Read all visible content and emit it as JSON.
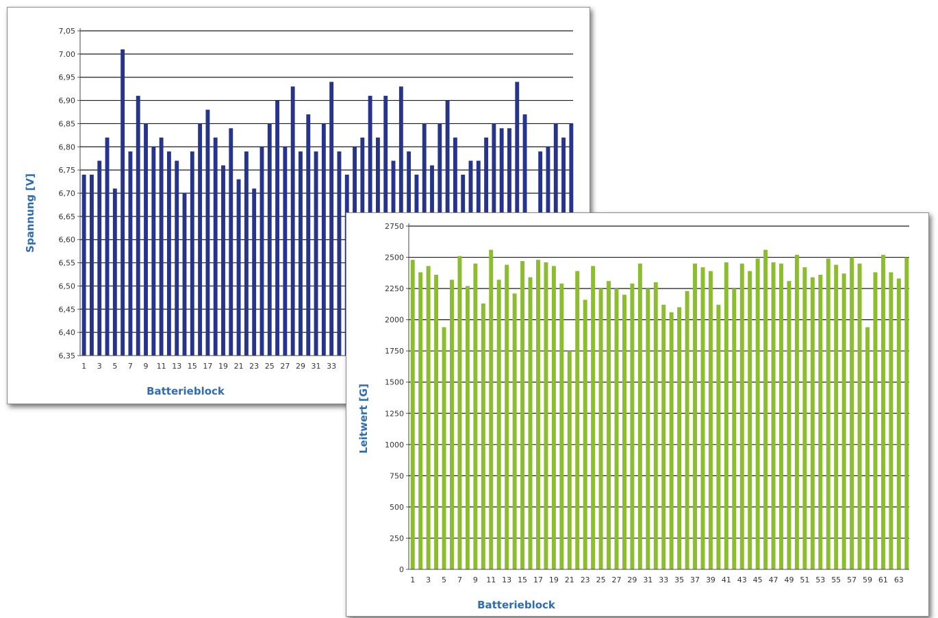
{
  "chart_data": [
    {
      "type": "bar",
      "xlabel": "Batterieblock",
      "ylabel": "Spannung [V]",
      "ylim": [
        6.35,
        7.05
      ],
      "yticks": [
        "6,35",
        "6,40",
        "6,45",
        "6,50",
        "6,55",
        "6,60",
        "6,65",
        "6,70",
        "6,75",
        "6,80",
        "6,85",
        "6,90",
        "6,95",
        "7.00",
        "7,05"
      ],
      "grid": true,
      "bar_color": "#26348c",
      "x": [
        1,
        2,
        3,
        4,
        5,
        6,
        7,
        8,
        9,
        10,
        11,
        12,
        13,
        14,
        15,
        16,
        17,
        18,
        19,
        20,
        21,
        22,
        23,
        24,
        25,
        26,
        27,
        28,
        29,
        30,
        31,
        32,
        33,
        34,
        35,
        36,
        37,
        38,
        39,
        40,
        41,
        42,
        43,
        44,
        45,
        46,
        47,
        48,
        49,
        50,
        51,
        52,
        53,
        54,
        55,
        56,
        57,
        58,
        59,
        60,
        61,
        62,
        63,
        64
      ],
      "xtick_labels": [
        "1",
        "3",
        "5",
        "7",
        "9",
        "11",
        "13",
        "15",
        "17",
        "19",
        "21",
        "23",
        "25",
        "27",
        "29",
        "31",
        "33"
      ],
      "values": [
        6.74,
        6.74,
        6.77,
        6.82,
        6.71,
        7.01,
        6.79,
        6.91,
        6.85,
        6.8,
        6.82,
        6.79,
        6.77,
        6.7,
        6.79,
        6.85,
        6.88,
        6.82,
        6.76,
        6.84,
        6.73,
        6.79,
        6.71,
        6.8,
        6.85,
        6.9,
        6.8,
        6.93,
        6.79,
        6.87,
        6.79,
        6.85,
        6.94,
        6.79,
        6.74,
        6.8,
        6.82,
        6.91,
        6.82,
        6.91,
        6.77,
        6.93,
        6.79,
        6.74,
        6.85,
        6.76,
        6.85,
        6.9,
        6.82,
        6.74,
        6.77,
        6.77,
        6.82,
        6.85,
        6.84,
        6.84,
        6.94,
        6.87,
        null,
        6.79,
        6.8,
        6.85,
        6.82,
        6.85
      ]
    },
    {
      "type": "bar",
      "xlabel": "Batterieblock",
      "ylabel": "Leitwert [G]",
      "ylim": [
        0,
        2750
      ],
      "yticks": [
        "0",
        "250",
        "500",
        "750",
        "1000",
        "1250",
        "1500",
        "1750",
        "2000",
        "2250",
        "2500",
        "2750"
      ],
      "grid": true,
      "bar_color": "#8cbd2e",
      "x": [
        1,
        2,
        3,
        4,
        5,
        6,
        7,
        8,
        9,
        10,
        11,
        12,
        13,
        14,
        15,
        16,
        17,
        18,
        19,
        20,
        21,
        22,
        23,
        24,
        25,
        26,
        27,
        28,
        29,
        30,
        31,
        32,
        33,
        34,
        35,
        36,
        37,
        38,
        39,
        40,
        41,
        42,
        43,
        44,
        45,
        46,
        47,
        48,
        49,
        50,
        51,
        52,
        53,
        54,
        55,
        56,
        57,
        58,
        59,
        60,
        61,
        62,
        63,
        64
      ],
      "xtick_labels": [
        "1",
        "3",
        "5",
        "7",
        "9",
        "11",
        "13",
        "15",
        "17",
        "19",
        "21",
        "23",
        "25",
        "27",
        "29",
        "31",
        "33",
        "35",
        "37",
        "39",
        "41",
        "43",
        "45",
        "47",
        "49",
        "51",
        "53",
        "55",
        "57",
        "59",
        "61",
        "63"
      ],
      "values": [
        2480,
        2380,
        2430,
        2360,
        1940,
        2320,
        2510,
        2270,
        2450,
        2130,
        2560,
        2320,
        2440,
        2210,
        2470,
        2340,
        2480,
        2460,
        2430,
        2290,
        1750,
        2390,
        2160,
        2430,
        2250,
        2310,
        2250,
        2200,
        2290,
        2450,
        2250,
        2300,
        2120,
        2060,
        2100,
        2230,
        2450,
        2420,
        2390,
        2120,
        2460,
        2250,
        2450,
        2390,
        2490,
        2560,
        2460,
        2450,
        2310,
        2520,
        2420,
        2340,
        2360,
        2490,
        2440,
        2370,
        2500,
        2450,
        1940,
        2380,
        2520,
        2380,
        2330,
        2500
      ]
    }
  ]
}
